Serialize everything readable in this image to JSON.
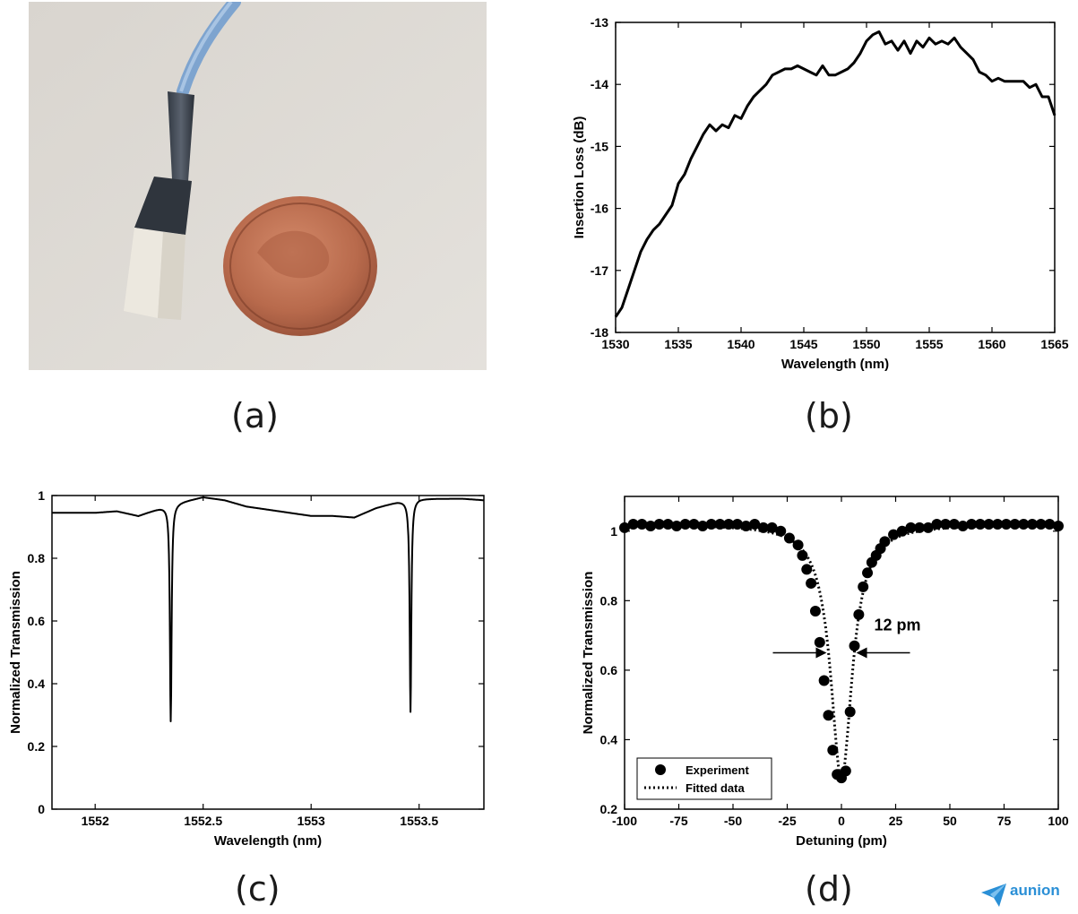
{
  "panels": {
    "a": {
      "label": "(a)"
    },
    "b": {
      "label": "(b)"
    },
    "c": {
      "label": "(c)"
    },
    "d": {
      "label": "(d)"
    }
  },
  "logo": {
    "text": "aunion"
  },
  "chart_data": [
    {
      "id": "b",
      "type": "line",
      "xlabel": "Wavelength (nm)",
      "ylabel": "Insertion Loss (dB)",
      "xlim": [
        1530,
        1565
      ],
      "ylim": [
        -18,
        -13
      ],
      "xticks": [
        1530,
        1535,
        1540,
        1545,
        1550,
        1555,
        1560,
        1565
      ],
      "yticks": [
        -18,
        -17,
        -16,
        -15,
        -14,
        -13
      ],
      "grid": false,
      "series": [
        {
          "x": [
            1530,
            1530.5,
            1531,
            1531.5,
            1532,
            1532.5,
            1533,
            1533.5,
            1534,
            1534.5,
            1535,
            1535.5,
            1536,
            1536.5,
            1537,
            1537.5,
            1538,
            1538.5,
            1539,
            1539.5,
            1540,
            1540.5,
            1541,
            1541.5,
            1542,
            1542.5,
            1543,
            1543.5,
            1544,
            1544.5,
            1545,
            1545.5,
            1546,
            1546.5,
            1547,
            1547.5,
            1548,
            1548.5,
            1549,
            1549.5,
            1550,
            1550.5,
            1551,
            1551.5,
            1552,
            1552.5,
            1553,
            1553.5,
            1554,
            1554.5,
            1555,
            1555.5,
            1556,
            1556.5,
            1557,
            1557.5,
            1558,
            1558.5,
            1559,
            1559.5,
            1560,
            1560.5,
            1561,
            1561.5,
            1562,
            1562.5,
            1563,
            1563.5,
            1564,
            1564.5,
            1565
          ],
          "y": [
            -17.75,
            -17.6,
            -17.3,
            -17.0,
            -16.7,
            -16.5,
            -16.35,
            -16.25,
            -16.1,
            -15.95,
            -15.6,
            -15.45,
            -15.2,
            -15.0,
            -14.8,
            -14.65,
            -14.75,
            -14.65,
            -14.7,
            -14.5,
            -14.55,
            -14.35,
            -14.2,
            -14.1,
            -14.0,
            -13.85,
            -13.8,
            -13.75,
            -13.75,
            -13.7,
            -13.75,
            -13.8,
            -13.85,
            -13.7,
            -13.85,
            -13.85,
            -13.8,
            -13.75,
            -13.65,
            -13.5,
            -13.3,
            -13.2,
            -13.15,
            -13.35,
            -13.3,
            -13.45,
            -13.3,
            -13.5,
            -13.3,
            -13.4,
            -13.25,
            -13.35,
            -13.3,
            -13.35,
            -13.25,
            -13.4,
            -13.5,
            -13.6,
            -13.8,
            -13.85,
            -13.95,
            -13.9,
            -13.95,
            -13.95,
            -13.95,
            -13.95,
            -14.05,
            -14.0,
            -14.2,
            -14.2,
            -14.5
          ]
        }
      ]
    },
    {
      "id": "c",
      "type": "line",
      "xlabel": "Wavelength (nm)",
      "ylabel": "Normalized Transmission",
      "xlim": [
        1551.8,
        1553.8
      ],
      "ylim": [
        0,
        1
      ],
      "xticks": [
        1552,
        1552.5,
        1553,
        1553.5
      ],
      "xticklabels": [
        "1552",
        "1552.5",
        "1553",
        "1553.5"
      ],
      "yticks": [
        0,
        0.2,
        0.4,
        0.6,
        0.8,
        1
      ],
      "yticklabels": [
        "0",
        "0.2",
        "0.4",
        "0.6",
        "0.8",
        "1"
      ],
      "grid": false,
      "baseline": {
        "x": [
          1551.8,
          1551.9,
          1552.0,
          1552.1,
          1552.2,
          1552.3,
          1552.4,
          1552.5,
          1552.6,
          1552.7,
          1552.8,
          1552.9,
          1553.0,
          1553.1,
          1553.2,
          1553.3,
          1553.4,
          1553.5,
          1553.6,
          1553.7,
          1553.8
        ],
        "y": [
          0.945,
          0.945,
          0.945,
          0.95,
          0.935,
          0.96,
          0.98,
          0.995,
          0.985,
          0.965,
          0.955,
          0.945,
          0.935,
          0.935,
          0.93,
          0.96,
          0.98,
          0.99,
          0.99,
          0.99,
          0.985
        ]
      },
      "dips": [
        {
          "center": 1552.35,
          "min": 0.28,
          "hwhm": 0.0045
        },
        {
          "center": 1553.46,
          "min": 0.31,
          "hwhm": 0.0045
        }
      ]
    },
    {
      "id": "d",
      "type": "scatter",
      "xlabel": "Detuning (pm)",
      "ylabel": "Normalized Transmission",
      "xlim": [
        -100,
        100
      ],
      "ylim": [
        0.2,
        1.1
      ],
      "xticks": [
        -100,
        -75,
        -50,
        -25,
        0,
        25,
        50,
        75,
        100
      ],
      "yticks": [
        0.2,
        0.4,
        0.6,
        0.8,
        1
      ],
      "yticklabels": [
        "0.2",
        "0.4",
        "0.6",
        "0.8",
        "1"
      ],
      "grid": false,
      "legend": {
        "position": "bottom-left",
        "entries": [
          "Experiment",
          "Fitted data"
        ]
      },
      "annotation": {
        "text": "12 pm",
        "width_pm": 12
      },
      "experiment": {
        "x": [
          -100,
          -96,
          -92,
          -88,
          -84,
          -80,
          -76,
          -72,
          -68,
          -64,
          -60,
          -56,
          -52,
          -48,
          -44,
          -40,
          -36,
          -32,
          -28,
          -24,
          -20,
          -18,
          -16,
          -14,
          -12,
          -10,
          -8,
          -6,
          -4,
          -2,
          0,
          2,
          4,
          6,
          8,
          10,
          12,
          14,
          16,
          18,
          20,
          24,
          28,
          32,
          36,
          40,
          44,
          48,
          52,
          56,
          60,
          64,
          68,
          72,
          76,
          80,
          84,
          88,
          92,
          96,
          100
        ],
        "y": [
          1.01,
          1.02,
          1.02,
          1.015,
          1.02,
          1.02,
          1.015,
          1.02,
          1.02,
          1.015,
          1.02,
          1.02,
          1.02,
          1.02,
          1.015,
          1.02,
          1.01,
          1.01,
          1.0,
          0.98,
          0.96,
          0.93,
          0.89,
          0.85,
          0.77,
          0.68,
          0.57,
          0.47,
          0.37,
          0.3,
          0.29,
          0.31,
          0.48,
          0.67,
          0.76,
          0.84,
          0.88,
          0.91,
          0.93,
          0.95,
          0.97,
          0.99,
          1.0,
          1.01,
          1.01,
          1.01,
          1.02,
          1.02,
          1.02,
          1.015,
          1.02,
          1.02,
          1.02,
          1.02,
          1.02,
          1.02,
          1.02,
          1.02,
          1.02,
          1.02,
          1.015
        ]
      },
      "fit": {
        "baseline": 1.02,
        "min": 0.285,
        "fwhm_pm": 12
      }
    }
  ]
}
